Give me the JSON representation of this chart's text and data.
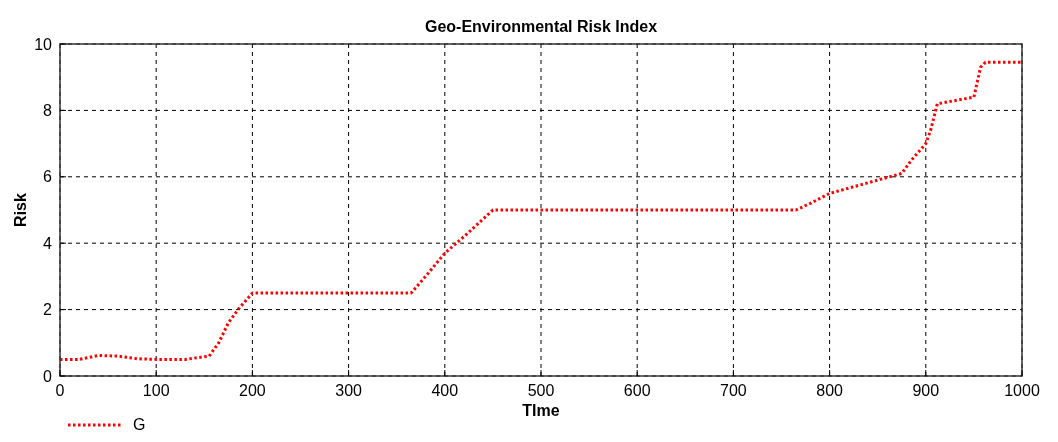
{
  "chart_data": {
    "type": "line",
    "title": "Geo-Environmental Risk Index",
    "xlabel": "TIme",
    "ylabel": "Risk",
    "x": [
      0,
      20,
      40,
      60,
      80,
      100,
      130,
      155,
      165,
      175,
      185,
      200,
      365,
      380,
      400,
      420,
      450,
      765,
      780,
      800,
      850,
      875,
      885,
      900,
      905,
      912,
      950,
      957,
      962,
      1000
    ],
    "series": [
      {
        "name": "G",
        "color": "#ff0000",
        "values": [
          0.5,
          0.5,
          0.62,
          0.6,
          0.52,
          0.5,
          0.5,
          0.6,
          1.0,
          1.6,
          2.0,
          2.5,
          2.5,
          3.0,
          3.7,
          4.2,
          5.0,
          5.0,
          5.2,
          5.5,
          5.9,
          6.1,
          6.5,
          7.0,
          7.4,
          8.2,
          8.4,
          9.3,
          9.45,
          9.45
        ]
      }
    ],
    "xlim": [
      0,
      1000
    ],
    "xticks": [
      0,
      100,
      200,
      300,
      400,
      500,
      600,
      700,
      800,
      900,
      1000
    ],
    "ylim": [
      0,
      10
    ],
    "yticks": [
      0,
      2,
      4,
      6,
      8,
      10
    ],
    "grid": true,
    "legend": "bottom left",
    "line_style": "dotted",
    "marker": "none"
  }
}
